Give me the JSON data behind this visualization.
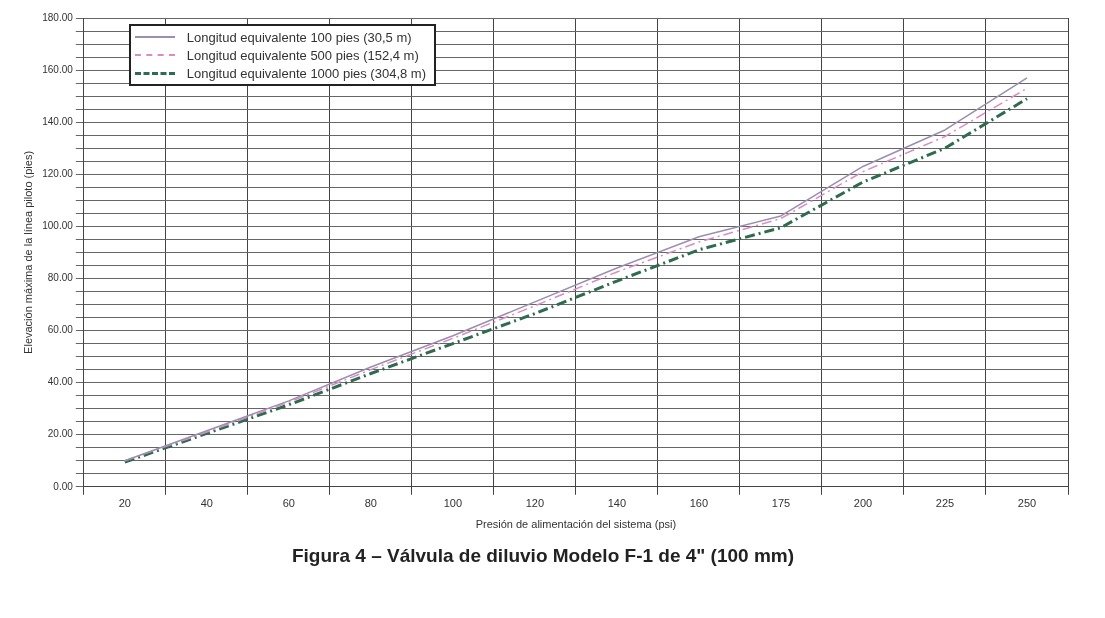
{
  "chart_data": {
    "type": "line",
    "title": "Figura 4 – Válvula de diluvio Modelo F-1 de 4\" (100 mm)",
    "xlabel": "Presión de alimentación del sistema (psi)",
    "ylabel": "Elevación máxima de la línea piloto (pies)",
    "categories": [
      "20",
      "40",
      "60",
      "80",
      "100",
      "120",
      "140",
      "160",
      "175",
      "200",
      "225",
      "250"
    ],
    "series": [
      {
        "name": "Longitud equivalente 100 pies (30,5 m)",
        "color": "#9a8fb0",
        "line_style": "solid",
        "values": [
          10,
          21.5,
          33,
          46,
          58,
          71,
          84,
          96,
          104,
          123,
          137,
          157
        ]
      },
      {
        "name": "Longitud equivalente 500 pies (152,4 m)",
        "color": "#d98cc4",
        "line_style": "dashed",
        "values": [
          10,
          21,
          32.5,
          45,
          57,
          69.5,
          82.5,
          94,
          103,
          121,
          134.5,
          153
        ]
      },
      {
        "name": "Longitud equivalente 1000 pies (304,8 m)",
        "color": "#2e6b4f",
        "line_style": "dashed",
        "values": [
          9.5,
          20.5,
          31.5,
          43.5,
          55,
          66.5,
          79,
          91,
          99.5,
          117,
          130,
          149
        ]
      }
    ],
    "ylim": [
      0,
      180
    ],
    "yticks": [
      {
        "value": 0,
        "label": "0.00"
      },
      {
        "value": 5,
        "label": null
      },
      {
        "value": 10,
        "label": null
      },
      {
        "value": 15,
        "label": null
      },
      {
        "value": 20,
        "label": "20.00"
      },
      {
        "value": 25,
        "label": null
      },
      {
        "value": 30,
        "label": null
      },
      {
        "value": 35,
        "label": null
      },
      {
        "value": 40,
        "label": "40.00"
      },
      {
        "value": 45,
        "label": null
      },
      {
        "value": 50,
        "label": null
      },
      {
        "value": 55,
        "label": null
      },
      {
        "value": 60,
        "label": "60.00"
      },
      {
        "value": 65,
        "label": null
      },
      {
        "value": 70,
        "label": null
      },
      {
        "value": 75,
        "label": null
      },
      {
        "value": 80,
        "label": "80.00"
      },
      {
        "value": 85,
        "label": null
      },
      {
        "value": 90,
        "label": null
      },
      {
        "value": 95,
        "label": null
      },
      {
        "value": 100,
        "label": "100.00"
      },
      {
        "value": 105,
        "label": null
      },
      {
        "value": 110,
        "label": null
      },
      {
        "value": 115,
        "label": null
      },
      {
        "value": 120,
        "label": "120.00"
      },
      {
        "value": 125,
        "label": null
      },
      {
        "value": 130,
        "label": null
      },
      {
        "value": 135,
        "label": null
      },
      {
        "value": 140,
        "label": "140.00"
      },
      {
        "value": 145,
        "label": null
      },
      {
        "value": 150,
        "label": null
      },
      {
        "value": 155,
        "label": null
      },
      {
        "value": 160,
        "label": "160.00"
      },
      {
        "value": 165,
        "label": null
      },
      {
        "value": 170,
        "label": null
      },
      {
        "value": 175,
        "label": null
      },
      {
        "value": 180,
        "label": "180.00"
      }
    ],
    "grid": true,
    "legend": "top left",
    "marker": "none"
  }
}
